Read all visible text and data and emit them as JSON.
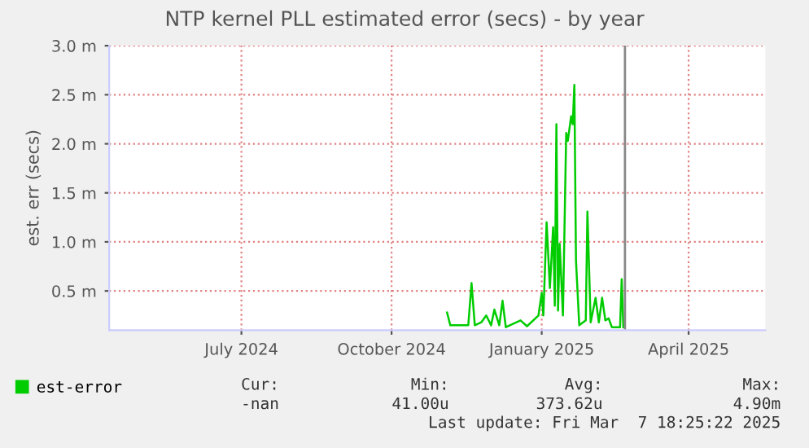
{
  "chart_data": {
    "type": "line",
    "title": "NTP kernel PLL estimated error (secs) - by year",
    "ylabel": "est. err (secs)",
    "x": [
      "2024-11-04",
      "2024-11-06",
      "2024-11-17",
      "2024-11-19",
      "2024-11-21",
      "2024-11-25",
      "2024-11-28",
      "2024-12-01",
      "2024-12-03",
      "2024-12-06",
      "2024-12-08",
      "2024-12-10",
      "2024-12-19",
      "2024-12-23",
      "2024-12-30",
      "2025-01-01",
      "2025-01-02",
      "2025-01-04",
      "2025-01-06",
      "2025-01-08",
      "2025-01-09",
      "2025-01-10",
      "2025-01-11",
      "2025-01-12",
      "2025-01-14",
      "2025-01-16",
      "2025-01-17",
      "2025-01-19",
      "2025-01-20",
      "2025-01-21",
      "2025-01-22",
      "2025-01-24",
      "2025-01-28",
      "2025-01-29",
      "2025-01-31",
      "2025-02-03",
      "2025-02-05",
      "2025-02-07",
      "2025-02-09",
      "2025-02-11",
      "2025-02-13",
      "2025-02-18",
      "2025-02-19",
      "2025-02-20"
    ],
    "series": [
      {
        "name": "est-error",
        "color": "#00cc00",
        "values": [
          0.28,
          0.15,
          0.15,
          0.58,
          0.15,
          0.18,
          0.25,
          0.15,
          0.31,
          0.15,
          0.4,
          0.13,
          0.2,
          0.14,
          0.25,
          0.48,
          0.25,
          1.2,
          0.53,
          1.15,
          0.35,
          2.2,
          0.3,
          0.98,
          0.25,
          2.11,
          2.03,
          2.28,
          2.2,
          2.6,
          0.81,
          0.15,
          0.2,
          1.31,
          0.18,
          0.43,
          0.18,
          0.43,
          0.2,
          0.22,
          0.13,
          0.13,
          0.62,
          0.13
        ]
      }
    ],
    "xlim": [
      "2024-04-11",
      "2025-05-18"
    ],
    "xticks": [
      {
        "value": "2024-07-01",
        "label": "July 2024"
      },
      {
        "value": "2024-10-01",
        "label": "October 2024"
      },
      {
        "value": "2025-01-01",
        "label": "January 2025"
      },
      {
        "value": "2025-04-01",
        "label": "April 2025"
      }
    ],
    "ylim": [
      0.1,
      3.0
    ],
    "yticks": [
      {
        "value": 0.5,
        "label": "0.5 m"
      },
      {
        "value": 1.0,
        "label": "1.0 m"
      },
      {
        "value": 1.5,
        "label": "1.5 m"
      },
      {
        "value": 2.0,
        "label": "2.0 m"
      },
      {
        "value": 2.5,
        "label": "2.5 m"
      },
      {
        "value": 3.0,
        "label": "3.0 m"
      }
    ],
    "ref_lines": [
      {
        "axis": "x",
        "value": "2025-02-21",
        "color": "#888888"
      }
    ],
    "grid": true,
    "legend": "bottom left",
    "annotations": [
      "Cur:",
      "Min:",
      "Avg:",
      "Max:",
      "-nan",
      "41.00u",
      "373.62u",
      "4.90m",
      "Last update: Fri Mar  7 18:25:22 2025"
    ]
  }
}
